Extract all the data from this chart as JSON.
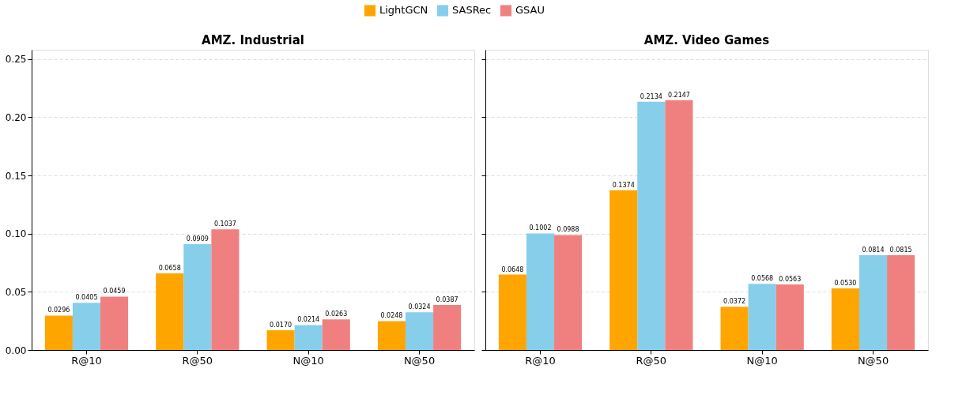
{
  "chart_data": [
    {
      "type": "bar",
      "title": "AMZ. Industrial",
      "categories": [
        "R@10",
        "R@50",
        "N@10",
        "N@50"
      ],
      "series": [
        {
          "name": "LightGCN",
          "color": "#ffa500",
          "values": [
            0.0296,
            0.0658,
            0.017,
            0.0248
          ],
          "value_labels": [
            "0.0296",
            "0.0658",
            "0.0170",
            "0.0248"
          ]
        },
        {
          "name": "SASRec",
          "color": "#87ceeb",
          "values": [
            0.0405,
            0.0909,
            0.0214,
            0.0324
          ],
          "value_labels": [
            "0.0405",
            "0.0909",
            "0.0214",
            "0.0324"
          ]
        },
        {
          "name": "GSAU",
          "color": "#f08080",
          "values": [
            0.0459,
            0.1037,
            0.0263,
            0.0387
          ],
          "value_labels": [
            "0.0459",
            "0.1037",
            "0.0263",
            "0.0387"
          ]
        }
      ],
      "ylim": [
        0,
        0.258
      ],
      "yticks": [
        {
          "value": 0,
          "label": "0.00"
        },
        0.05,
        {
          "value": 0.1,
          "label": "0.10"
        },
        0.15,
        {
          "value": 0.2,
          "label": "0.20"
        },
        0.25
      ],
      "grid": "y",
      "legend": "top"
    },
    {
      "type": "bar",
      "title": "AMZ. Video Games",
      "categories": [
        "R@10",
        "R@50",
        "N@10",
        "N@50"
      ],
      "series": [
        {
          "name": "LightGCN",
          "color": "#ffa500",
          "values": [
            0.0648,
            0.1374,
            0.0372,
            0.053
          ],
          "value_labels": [
            "0.0648",
            "0.1374",
            "0.0372",
            "0.0530"
          ]
        },
        {
          "name": "SASRec",
          "color": "#87ceeb",
          "values": [
            0.1002,
            0.2134,
            0.0568,
            0.0814
          ],
          "value_labels": [
            "0.1002",
            "0.2134",
            "0.0568",
            "0.0814"
          ]
        },
        {
          "name": "GSAU",
          "color": "#f08080",
          "values": [
            0.0988,
            0.2147,
            0.0563,
            0.0815
          ],
          "value_labels": [
            "0.0988",
            "0.2147",
            "0.0563",
            "0.0815"
          ]
        }
      ],
      "ylim": [
        0,
        0.258
      ],
      "yticks": [
        0,
        0.05,
        0.1,
        0.15,
        0.2,
        0.25
      ],
      "grid": "y",
      "tick_labels": "x"
    }
  ]
}
